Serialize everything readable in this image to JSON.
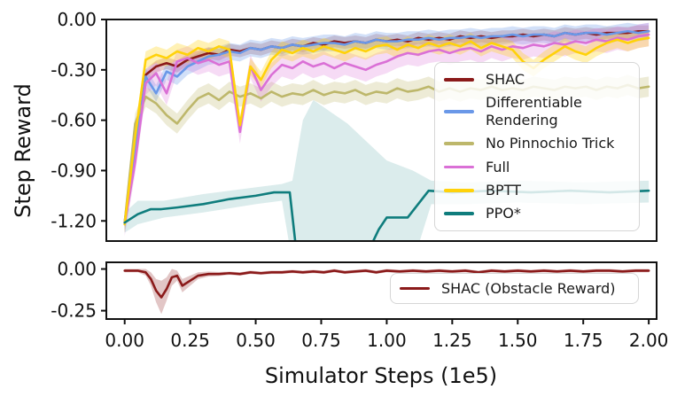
{
  "figure": {
    "background": "#ffffff",
    "text_color": "#111111",
    "spine_color": "#111111"
  },
  "chart_data": [
    {
      "type": "line",
      "title": "",
      "ylabel": "Step Reward",
      "xlabel": "",
      "xlim": [
        -0.07,
        2.03
      ],
      "ylim": [
        -1.32,
        0.0
      ],
      "grid": false,
      "yticks": {
        "values": [
          0.0,
          -0.3,
          -0.6,
          -0.9,
          -1.2
        ],
        "labels": [
          "0.00",
          "-0.30",
          "-0.60",
          "-0.90",
          "-1.20"
        ]
      },
      "xticks": null,
      "legend": {
        "position": "center-right-inside",
        "entries": [
          {
            "label": "SHAC",
            "color": "#8B1A1A"
          },
          {
            "label": "Differentiable\nRendering",
            "color": "#6A98E8"
          },
          {
            "label": "No Pinnochio Trick",
            "color": "#BDB76B"
          },
          {
            "label": "Full",
            "color": "#DA70D6"
          },
          {
            "label": "BPTT",
            "color": "#FFD20A"
          },
          {
            "label": "PPO*",
            "color": "#0F7D7D"
          }
        ]
      },
      "x_grid": [
        0,
        0.04,
        0.08,
        0.12,
        0.16,
        0.2,
        0.24,
        0.28,
        0.32,
        0.36,
        0.4,
        0.44,
        0.48,
        0.52,
        0.56,
        0.6,
        0.64,
        0.68,
        0.72,
        0.76,
        0.8,
        0.84,
        0.88,
        0.92,
        0.96,
        1,
        1.04,
        1.08,
        1.12,
        1.16,
        1.2,
        1.24,
        1.28,
        1.32,
        1.36,
        1.4,
        1.44,
        1.48,
        1.52,
        1.56,
        1.6,
        1.64,
        1.68,
        1.72,
        1.76,
        1.8,
        1.84,
        1.88,
        1.92,
        1.96,
        2
      ],
      "series": [
        {
          "name": "SHAC",
          "color": "#8B1A1A",
          "y": [
            -1.21,
            -0.72,
            -0.33,
            -0.28,
            -0.26,
            -0.28,
            -0.24,
            -0.22,
            -0.2,
            -0.21,
            -0.18,
            -0.19,
            -0.17,
            -0.18,
            -0.16,
            -0.17,
            -0.15,
            -0.16,
            -0.14,
            -0.15,
            -0.13,
            -0.14,
            -0.13,
            -0.14,
            -0.12,
            -0.13,
            -0.12,
            -0.13,
            -0.11,
            -0.12,
            -0.11,
            -0.12,
            -0.1,
            -0.11,
            -0.1,
            -0.11,
            -0.1,
            -0.1,
            -0.09,
            -0.1,
            -0.09,
            -0.1,
            -0.08,
            -0.09,
            -0.08,
            -0.09,
            -0.08,
            -0.08,
            -0.08,
            -0.07,
            -0.07
          ],
          "band": {
            "w": 0.035,
            "opacity": 0.22
          }
        },
        {
          "name": "Differentiable Rendering",
          "color": "#6A98E8",
          "y": [
            -1.21,
            -0.78,
            -0.34,
            -0.44,
            -0.31,
            -0.34,
            -0.28,
            -0.25,
            -0.22,
            -0.21,
            -0.19,
            -0.2,
            -0.17,
            -0.18,
            -0.16,
            -0.17,
            -0.15,
            -0.16,
            -0.15,
            -0.14,
            -0.14,
            -0.15,
            -0.13,
            -0.14,
            -0.12,
            -0.13,
            -0.13,
            -0.12,
            -0.12,
            -0.11,
            -0.12,
            -0.11,
            -0.11,
            -0.1,
            -0.11,
            -0.1,
            -0.1,
            -0.09,
            -0.1,
            -0.09,
            -0.09,
            -0.1,
            -0.08,
            -0.09,
            -0.08,
            -0.08,
            -0.09,
            -0.08,
            -0.07,
            -0.08,
            -0.07
          ],
          "band": {
            "w": 0.05,
            "opacity": 0.3
          }
        },
        {
          "name": "No Pinnochio Trick",
          "color": "#BDB76B",
          "y": [
            -1.21,
            -0.62,
            -0.46,
            -0.5,
            -0.57,
            -0.62,
            -0.54,
            -0.47,
            -0.44,
            -0.48,
            -0.43,
            -0.46,
            -0.44,
            -0.47,
            -0.43,
            -0.46,
            -0.44,
            -0.45,
            -0.42,
            -0.45,
            -0.43,
            -0.44,
            -0.42,
            -0.45,
            -0.43,
            -0.44,
            -0.41,
            -0.43,
            -0.42,
            -0.4,
            -0.43,
            -0.41,
            -0.43,
            -0.41,
            -0.42,
            -0.4,
            -0.42,
            -0.41,
            -0.42,
            -0.4,
            -0.41,
            -0.42,
            -0.4,
            -0.41,
            -0.4,
            -0.42,
            -0.4,
            -0.41,
            -0.39,
            -0.41,
            -0.4
          ],
          "band": {
            "w": 0.06,
            "opacity": 0.28
          }
        },
        {
          "name": "Full",
          "color": "#DA70D6",
          "y": [
            -1.22,
            -0.85,
            -0.38,
            -0.32,
            -0.44,
            -0.25,
            -0.23,
            -0.26,
            -0.24,
            -0.27,
            -0.25,
            -0.67,
            -0.28,
            -0.42,
            -0.33,
            -0.27,
            -0.29,
            -0.25,
            -0.28,
            -0.26,
            -0.29,
            -0.26,
            -0.28,
            -0.3,
            -0.27,
            -0.25,
            -0.22,
            -0.2,
            -0.21,
            -0.19,
            -0.18,
            -0.2,
            -0.18,
            -0.17,
            -0.19,
            -0.16,
            -0.18,
            -0.16,
            -0.17,
            -0.15,
            -0.16,
            -0.14,
            -0.15,
            -0.13,
            -0.14,
            -0.12,
            -0.13,
            -0.11,
            -0.12,
            -0.1,
            -0.09
          ],
          "band": {
            "w": 0.07,
            "opacity": 0.25
          }
        },
        {
          "name": "BPTT",
          "color": "#FFD20A",
          "y": [
            -1.22,
            -0.7,
            -0.24,
            -0.21,
            -0.23,
            -0.19,
            -0.21,
            -0.17,
            -0.19,
            -0.16,
            -0.18,
            -0.63,
            -0.28,
            -0.36,
            -0.24,
            -0.18,
            -0.2,
            -0.17,
            -0.19,
            -0.16,
            -0.18,
            -0.2,
            -0.17,
            -0.19,
            -0.16,
            -0.15,
            -0.18,
            -0.15,
            -0.17,
            -0.14,
            -0.16,
            -0.14,
            -0.16,
            -0.13,
            -0.17,
            -0.14,
            -0.16,
            -0.18,
            -0.25,
            -0.29,
            -0.24,
            -0.2,
            -0.16,
            -0.19,
            -0.21,
            -0.17,
            -0.14,
            -0.12,
            -0.14,
            -0.12,
            -0.11
          ],
          "band": {
            "w": 0.05,
            "opacity": 0.3
          }
        },
        {
          "name": "PPO*",
          "color": "#0F7D7D",
          "x": [
            0,
            0.05,
            0.1,
            0.14,
            0.2,
            0.3,
            0.4,
            0.5,
            0.57,
            0.63,
            0.66,
            0.7,
            0.8,
            0.88,
            0.93,
            0.97,
            1.0,
            1.08,
            1.12,
            1.16,
            1.25,
            1.4,
            1.55,
            1.7,
            1.85,
            2.0
          ],
          "y": [
            -1.21,
            -1.16,
            -1.13,
            -1.13,
            -1.12,
            -1.1,
            -1.07,
            -1.05,
            -1.03,
            -1.03,
            -1.45,
            -1.6,
            -1.65,
            -1.55,
            -1.38,
            -1.25,
            -1.18,
            -1.18,
            -1.1,
            -1.02,
            -1.03,
            -1.02,
            -1.03,
            -1.02,
            -1.03,
            -1.02
          ],
          "band": {
            "x": [
              0,
              0.05,
              0.15,
              0.3,
              0.5,
              0.6,
              0.64,
              0.68,
              0.72,
              0.85,
              1.0,
              1.1,
              1.17,
              1.3,
              1.5,
              1.75,
              2.0
            ],
            "upper": [
              -1.15,
              -1.08,
              -1.08,
              -1.04,
              -1.0,
              -0.98,
              -0.96,
              -0.6,
              -0.48,
              -0.62,
              -0.84,
              -0.9,
              -0.96,
              -0.97,
              -0.96,
              -0.97,
              -0.96
            ],
            "lower": [
              -1.27,
              -1.22,
              -1.18,
              -1.15,
              -1.1,
              -1.08,
              -1.45,
              -1.6,
              -1.7,
              -1.7,
              -1.6,
              -1.45,
              -1.1,
              -1.1,
              -1.09,
              -1.1,
              -1.09
            ],
            "opacity": 0.15
          }
        }
      ]
    },
    {
      "type": "line",
      "title": "",
      "ylabel": "",
      "xlabel": "Simulator Steps (1e5)",
      "xlim": [
        -0.07,
        2.03
      ],
      "ylim": [
        -0.3,
        0.04
      ],
      "grid": false,
      "yticks": {
        "values": [
          0.0,
          -0.25
        ],
        "labels": [
          "0.00",
          "-0.25"
        ]
      },
      "xticks": {
        "values": [
          0,
          0.25,
          0.5,
          0.75,
          1,
          1.25,
          1.5,
          1.75,
          2
        ],
        "labels": [
          "0.00",
          "0.25",
          "0.50",
          "0.75",
          "1.00",
          "1.25",
          "1.50",
          "1.75",
          "2.00"
        ]
      },
      "legend": {
        "position": "lower-right-inside",
        "entries": [
          {
            "label": "SHAC (Obstacle Reward)",
            "color": "#8B1A1A"
          }
        ]
      },
      "series": [
        {
          "name": "SHAC (Obstacle Reward)",
          "color": "#8B1A1A",
          "x": [
            0,
            0.05,
            0.08,
            0.1,
            0.12,
            0.14,
            0.16,
            0.18,
            0.2,
            0.22,
            0.25,
            0.28,
            0.32,
            0.36,
            0.4,
            0.44,
            0.48,
            0.52,
            0.56,
            0.6,
            0.64,
            0.68,
            0.72,
            0.76,
            0.8,
            0.84,
            0.88,
            0.92,
            0.96,
            1.0,
            1.05,
            1.1,
            1.15,
            1.2,
            1.25,
            1.3,
            1.35,
            1.4,
            1.45,
            1.5,
            1.55,
            1.6,
            1.65,
            1.7,
            1.75,
            1.8,
            1.85,
            1.9,
            1.95,
            2.0
          ],
          "y": [
            -0.01,
            -0.01,
            -0.02,
            -0.06,
            -0.13,
            -0.17,
            -0.12,
            -0.05,
            -0.04,
            -0.1,
            -0.07,
            -0.04,
            -0.03,
            -0.03,
            -0.025,
            -0.03,
            -0.02,
            -0.025,
            -0.02,
            -0.02,
            -0.015,
            -0.02,
            -0.015,
            -0.02,
            -0.01,
            -0.02,
            -0.015,
            -0.01,
            -0.02,
            -0.01,
            -0.015,
            -0.01,
            -0.015,
            -0.01,
            -0.015,
            -0.01,
            -0.02,
            -0.01,
            -0.015,
            -0.01,
            -0.015,
            -0.01,
            -0.015,
            -0.01,
            -0.015,
            -0.01,
            -0.01,
            -0.015,
            -0.01,
            -0.01
          ],
          "band": {
            "w": [
              0.01,
              0.01,
              0.02,
              0.04,
              0.07,
              0.1,
              0.07,
              0.05,
              0.03,
              0.04,
              0.03,
              0.02,
              0.015,
              0.012,
              0.01,
              0.01,
              0.01,
              0.01,
              0.01,
              0.01,
              0.01,
              0.01,
              0.01,
              0.01,
              0.01,
              0.01,
              0.01,
              0.01,
              0.01,
              0.01,
              0.01,
              0.01,
              0.01,
              0.01,
              0.01,
              0.01,
              0.01,
              0.01,
              0.01,
              0.01,
              0.01,
              0.01,
              0.01,
              0.01,
              0.01,
              0.01,
              0.01,
              0.01,
              0.01,
              0.01
            ],
            "opacity": 0.25
          }
        }
      ]
    }
  ]
}
